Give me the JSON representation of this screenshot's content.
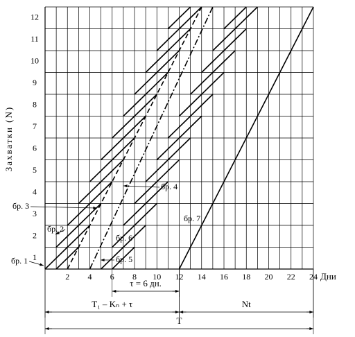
{
  "chart_data": {
    "type": "line",
    "y_label": "Захватки (N)",
    "x_label": "Дни",
    "xlim": [
      0,
      24
    ],
    "xticks": [
      2,
      4,
      6,
      8,
      10,
      12,
      14,
      16,
      18,
      20,
      22,
      24
    ],
    "ylim": [
      0,
      12
    ],
    "yticks": [
      1,
      2,
      3,
      4,
      5,
      6,
      7,
      8,
      9,
      10,
      11,
      12
    ],
    "grid": true,
    "series": [
      {
        "name": "бр. 1",
        "color": "#000000",
        "style": "solid",
        "x": [
          0,
          2,
          null,
          1,
          3,
          null,
          2,
          4,
          null,
          3,
          5,
          null,
          4,
          6,
          null,
          5,
          7,
          null,
          6,
          8,
          null,
          7,
          9,
          null,
          8,
          10,
          null,
          9,
          11,
          null,
          10,
          12,
          null,
          11,
          13
        ],
        "values": [
          0,
          1,
          null,
          1,
          2,
          null,
          2,
          3,
          null,
          3,
          4,
          null,
          4,
          5,
          null,
          5,
          6,
          null,
          6,
          7,
          null,
          7,
          8,
          null,
          8,
          9,
          null,
          9,
          10,
          null,
          10,
          11,
          null,
          11,
          12
        ]
      },
      {
        "name": "бр. 2",
        "color": "#000000",
        "style": "solid",
        "x": [
          1,
          3,
          null,
          2,
          4,
          null,
          3,
          5,
          null,
          4,
          6,
          null,
          5,
          7,
          null,
          6,
          8,
          null,
          7,
          9,
          null,
          8,
          10,
          null,
          9,
          11,
          null,
          10,
          12,
          null,
          11,
          13,
          null,
          12,
          14
        ],
        "values": [
          0,
          1,
          null,
          1,
          2,
          null,
          2,
          3,
          null,
          3,
          4,
          null,
          4,
          5,
          null,
          5,
          6,
          null,
          6,
          7,
          null,
          7,
          8,
          null,
          8,
          9,
          null,
          9,
          10,
          null,
          10,
          11,
          null,
          11,
          12
        ]
      },
      {
        "name": "бр. 3",
        "color": "#000000",
        "style": "dashed",
        "x": [
          2,
          14
        ],
        "values": [
          0,
          12
        ]
      },
      {
        "name": "бр. 4",
        "color": "#000000",
        "style": "dashdot",
        "x": [
          4,
          15
        ],
        "values": [
          0,
          12
        ]
      },
      {
        "name": "бр. 5",
        "color": "#000000",
        "style": "solid",
        "x": [
          5,
          7,
          null,
          6,
          8,
          null,
          7,
          9,
          null,
          8,
          10,
          null,
          9,
          11,
          null,
          10,
          12,
          null,
          11,
          13,
          null,
          12,
          14,
          null,
          13,
          15,
          null,
          14,
          16,
          null,
          15,
          17,
          null,
          16,
          18
        ],
        "values": [
          0,
          1,
          null,
          1,
          2,
          null,
          2,
          3,
          null,
          3,
          4,
          null,
          4,
          5,
          null,
          5,
          6,
          null,
          6,
          7,
          null,
          7,
          8,
          null,
          8,
          9,
          null,
          9,
          10,
          null,
          10,
          11,
          null,
          11,
          12
        ]
      },
      {
        "name": "бр. 6",
        "color": "#000000",
        "style": "solid",
        "x": [
          6,
          8,
          null,
          7,
          9,
          null,
          8,
          10,
          null,
          9,
          11,
          null,
          10,
          12,
          null,
          11,
          13,
          null,
          12,
          14,
          null,
          13,
          15,
          null,
          14,
          16,
          null,
          15,
          17,
          null,
          16,
          18,
          null,
          17,
          19
        ],
        "values": [
          0,
          1,
          null,
          1,
          2,
          null,
          2,
          3,
          null,
          3,
          4,
          null,
          4,
          5,
          null,
          5,
          6,
          null,
          6,
          7,
          null,
          7,
          8,
          null,
          8,
          9,
          null,
          9,
          10,
          null,
          10,
          11,
          null,
          11,
          12
        ]
      },
      {
        "name": "бр. 7",
        "color": "#000000",
        "style": "solid",
        "x": [
          12,
          24
        ],
        "values": [
          0,
          12
        ]
      }
    ],
    "annotations": [
      {
        "text": "τ = 6 дн.",
        "x": [
          6,
          12
        ]
      },
      {
        "text": "T₁ – Kₙ + τ",
        "x": [
          0,
          12
        ]
      },
      {
        "text": "Nt",
        "x": [
          12,
          24
        ]
      },
      {
        "text": "T",
        "x": [
          0,
          24
        ]
      }
    ]
  }
}
